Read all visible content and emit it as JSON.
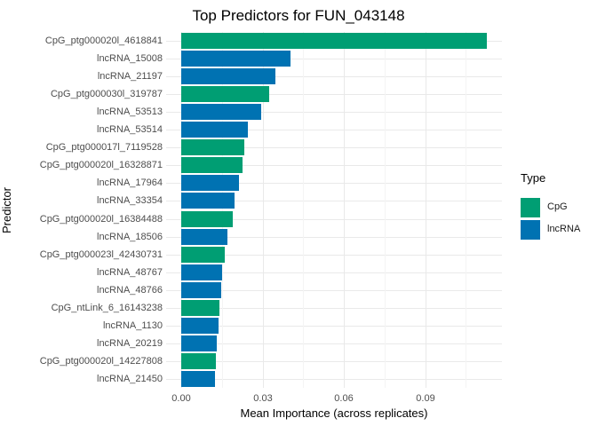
{
  "title": "Top Predictors for FUN_043148",
  "chart_data": {
    "type": "bar",
    "orientation": "horizontal",
    "title": "Top Predictors for FUN_043148",
    "xlabel": "Mean Importance (across replicates)",
    "ylabel": "Predictor",
    "xlim": [
      0,
      0.118
    ],
    "x_ticks": [
      0,
      0.03,
      0.06,
      0.09
    ],
    "x_tick_labels": [
      "0.00",
      "0.03",
      "0.06",
      "0.09"
    ],
    "x_minor_gridlines": [
      0.015,
      0.045,
      0.075,
      0.105
    ],
    "grid": true,
    "background": "#ffffff",
    "gridline_color_major": "#e9e9e9",
    "gridline_color_minor": "#f4f4f4",
    "categories": [
      "CpG_ptg000020l_4618841",
      "lncRNA_15008",
      "lncRNA_21197",
      "CpG_ptg000030l_319787",
      "lncRNA_53513",
      "lncRNA_53514",
      "CpG_ptg000017l_7119528",
      "CpG_ptg000020l_16328871",
      "lncRNA_17964",
      "lncRNA_33354",
      "CpG_ptg000020l_16384488",
      "lncRNA_18506",
      "CpG_ptg000023l_42430731",
      "lncRNA_48767",
      "lncRNA_48766",
      "CpG_ntLink_6_16143238",
      "lncRNA_1130",
      "lncRNA_20219",
      "CpG_ptg000020l_14227808",
      "lncRNA_21450"
    ],
    "values": [
      0.1127,
      0.0402,
      0.0348,
      0.0324,
      0.0296,
      0.0245,
      0.0233,
      0.0227,
      0.0214,
      0.0196,
      0.019,
      0.0171,
      0.0161,
      0.015,
      0.0147,
      0.0141,
      0.0139,
      0.0131,
      0.0128,
      0.0126
    ],
    "types": [
      "CpG",
      "lncRNA",
      "lncRNA",
      "CpG",
      "lncRNA",
      "lncRNA",
      "CpG",
      "CpG",
      "lncRNA",
      "lncRNA",
      "CpG",
      "lncRNA",
      "CpG",
      "lncRNA",
      "lncRNA",
      "CpG",
      "lncRNA",
      "lncRNA",
      "CpG",
      "lncRNA"
    ],
    "colors": {
      "CpG": "#009E73",
      "lncRNA": "#0072B2"
    },
    "legend": {
      "title": "Type",
      "position": "right",
      "entries": [
        {
          "label": "CpG",
          "color": "#009E73"
        },
        {
          "label": "lncRNA",
          "color": "#0072B2"
        }
      ]
    }
  }
}
